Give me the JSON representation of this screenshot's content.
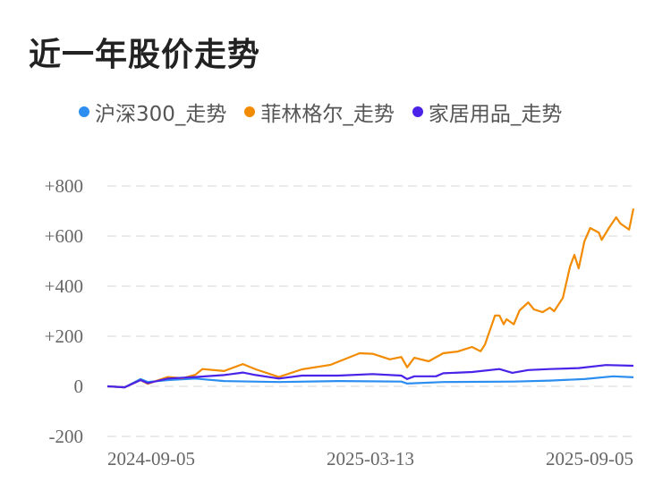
{
  "chart_data": {
    "type": "line",
    "title": "近一年股价走势",
    "xlabel": "",
    "ylabel": "",
    "ylim": [
      -200,
      800
    ],
    "yticks": [
      "+800",
      "+600",
      "+400",
      "+200",
      "0",
      "-200"
    ],
    "ytick_values": [
      800,
      600,
      400,
      200,
      0,
      -200
    ],
    "xticks": [
      "2024-09-05",
      "2025-03-13",
      "2025-09-05"
    ],
    "x_unit": "days since 2024-09-05",
    "x_range": [
      0,
      365
    ],
    "grid": true,
    "legend_position": "top",
    "series": [
      {
        "name": "沪深300_走势",
        "color": "#2b8ef0",
        "points": [
          [
            0,
            0
          ],
          [
            12,
            -4
          ],
          [
            23,
            29
          ],
          [
            28,
            17
          ],
          [
            42,
            25
          ],
          [
            61,
            31
          ],
          [
            81,
            21
          ],
          [
            119,
            17
          ],
          [
            160,
            21
          ],
          [
            204,
            19
          ],
          [
            208,
            11
          ],
          [
            233,
            17
          ],
          [
            282,
            19
          ],
          [
            307,
            23
          ],
          [
            331,
            29
          ],
          [
            351,
            40
          ],
          [
            365,
            36
          ]
        ]
      },
      {
        "name": "菲林格尔_走势",
        "color": "#f28b00",
        "points": [
          [
            0,
            0
          ],
          [
            12,
            -4
          ],
          [
            23,
            25
          ],
          [
            28,
            10
          ],
          [
            42,
            37
          ],
          [
            52,
            32
          ],
          [
            61,
            46
          ],
          [
            66,
            69
          ],
          [
            81,
            61
          ],
          [
            94,
            89
          ],
          [
            103,
            68
          ],
          [
            119,
            37
          ],
          [
            135,
            68
          ],
          [
            155,
            86
          ],
          [
            175,
            132
          ],
          [
            184,
            130
          ],
          [
            196,
            108
          ],
          [
            204,
            117
          ],
          [
            208,
            76
          ],
          [
            213,
            114
          ],
          [
            223,
            100
          ],
          [
            233,
            132
          ],
          [
            243,
            139
          ],
          [
            253,
            157
          ],
          [
            259,
            140
          ],
          [
            262,
            167
          ],
          [
            269,
            283
          ],
          [
            272,
            283
          ],
          [
            275,
            248
          ],
          [
            277,
            268
          ],
          [
            282,
            248
          ],
          [
            286,
            303
          ],
          [
            292,
            335
          ],
          [
            296,
            307
          ],
          [
            302,
            296
          ],
          [
            307,
            314
          ],
          [
            310,
            300
          ],
          [
            316,
            353
          ],
          [
            321,
            478
          ],
          [
            324,
            525
          ],
          [
            327,
            471
          ],
          [
            331,
            579
          ],
          [
            335,
            632
          ],
          [
            341,
            614
          ],
          [
            343,
            585
          ],
          [
            348,
            632
          ],
          [
            353,
            675
          ],
          [
            356,
            650
          ],
          [
            362,
            626
          ],
          [
            365,
            710
          ]
        ]
      },
      {
        "name": "家居用品_走势",
        "color": "#4a22e8",
        "points": [
          [
            0,
            0
          ],
          [
            12,
            -4
          ],
          [
            23,
            25
          ],
          [
            28,
            13
          ],
          [
            42,
            31
          ],
          [
            61,
            37
          ],
          [
            81,
            45
          ],
          [
            94,
            55
          ],
          [
            103,
            45
          ],
          [
            119,
            31
          ],
          [
            135,
            43
          ],
          [
            160,
            43
          ],
          [
            184,
            49
          ],
          [
            204,
            43
          ],
          [
            208,
            29
          ],
          [
            213,
            40
          ],
          [
            228,
            40
          ],
          [
            233,
            52
          ],
          [
            253,
            57
          ],
          [
            272,
            69
          ],
          [
            281,
            54
          ],
          [
            292,
            65
          ],
          [
            307,
            69
          ],
          [
            327,
            73
          ],
          [
            346,
            85
          ],
          [
            365,
            82
          ]
        ]
      }
    ]
  }
}
